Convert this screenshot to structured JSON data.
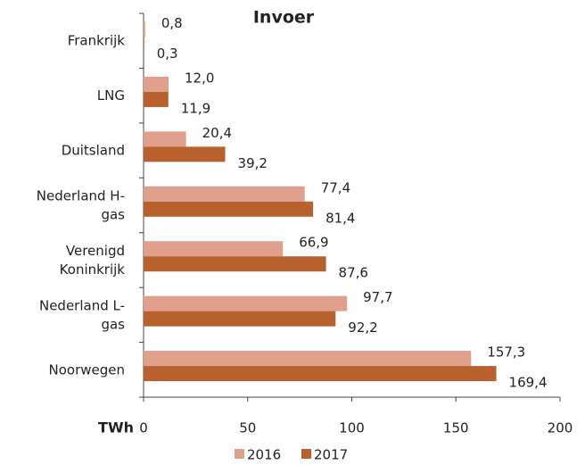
{
  "chart_data": {
    "type": "bar",
    "orientation": "horizontal",
    "title": "Invoer",
    "categories": [
      [
        "Frankrijk"
      ],
      [
        "LNG"
      ],
      [
        "Duitsland"
      ],
      [
        "Nederland H-",
        "gas"
      ],
      [
        "Verenigd",
        "Koninkrijk"
      ],
      [
        "Nederland L-",
        "gas"
      ],
      [
        "Noorwegen"
      ]
    ],
    "series": [
      {
        "name": "2016",
        "color": "#e0a08c",
        "values": [
          0.8,
          12.0,
          20.4,
          77.4,
          66.9,
          97.7,
          157.3
        ],
        "value_labels": [
          "0,8",
          "12,0",
          "20,4",
          "77,4",
          "66,9",
          "97,7",
          "157,3"
        ]
      },
      {
        "name": "2017",
        "color": "#b8612d",
        "values": [
          0.3,
          11.9,
          39.2,
          81.4,
          87.6,
          92.2,
          169.4
        ],
        "value_labels": [
          "0,3",
          "11,9",
          "39,2",
          "81,4",
          "87,6",
          "92,2",
          "169,4"
        ]
      }
    ],
    "xlabel": "TWh",
    "xlim": [
      0,
      200
    ],
    "xticks": [
      0,
      50,
      100,
      150,
      200
    ],
    "legend": "bottom"
  }
}
